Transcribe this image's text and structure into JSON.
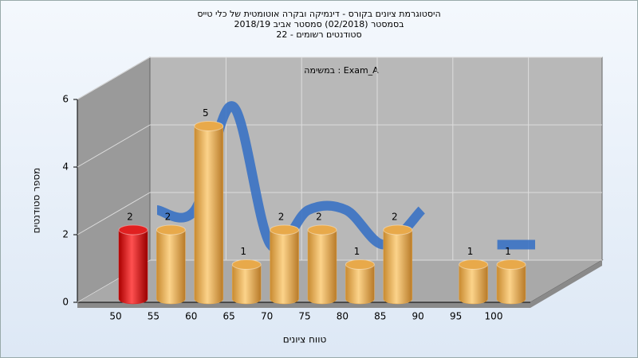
{
  "chart_data": {
    "type": "bar3d",
    "title_lines": [
      "היסטוגרמת ציונים בקורס - דינמיקה ובקרה אוטומטית של כלי טייס",
      "בסמסטר  (02/2018)  סמסטר אביב 2018/19",
      "סטודנטים רשומים - 22"
    ],
    "annotation": "במשימה : Exam_A",
    "x_label": "טווח ציונים",
    "y_label": "מספר סטודנטים",
    "categories": [
      "50",
      "55",
      "60",
      "65",
      "70",
      "75",
      "80",
      "85",
      "90",
      "95",
      "100"
    ],
    "values": [
      2,
      2,
      5,
      1,
      2,
      2,
      1,
      2,
      null,
      1,
      1
    ],
    "colors": [
      "#e02020",
      "#e8a94a",
      "#e8a94a",
      "#e8a94a",
      "#e8a94a",
      "#e8a94a",
      "#e8a94a",
      "#e8a94a",
      "#e8a94a",
      "#e8a94a",
      "#e8a94a"
    ],
    "trend_color": "#3a72c4",
    "ylim": [
      0,
      6
    ],
    "yticks": [
      0,
      2,
      4,
      6
    ],
    "grid": true
  }
}
